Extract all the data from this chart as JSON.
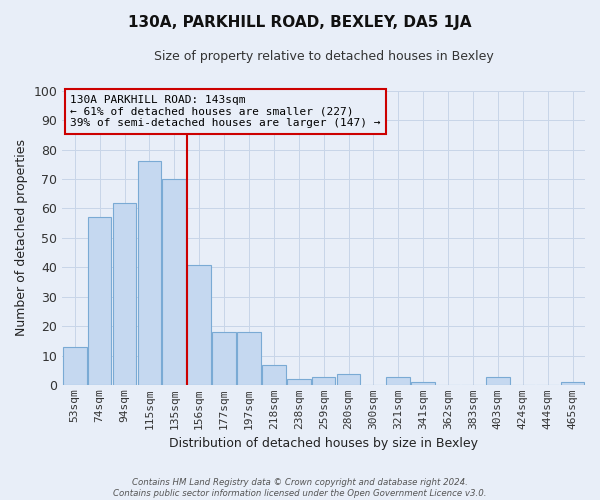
{
  "title": "130A, PARKHILL ROAD, BEXLEY, DA5 1JA",
  "subtitle": "Size of property relative to detached houses in Bexley",
  "xlabel": "Distribution of detached houses by size in Bexley",
  "ylabel": "Number of detached properties",
  "bar_labels": [
    "53sqm",
    "74sqm",
    "94sqm",
    "115sqm",
    "135sqm",
    "156sqm",
    "177sqm",
    "197sqm",
    "218sqm",
    "238sqm",
    "259sqm",
    "280sqm",
    "300sqm",
    "321sqm",
    "341sqm",
    "362sqm",
    "383sqm",
    "403sqm",
    "424sqm",
    "444sqm",
    "465sqm"
  ],
  "bar_values": [
    13,
    57,
    62,
    76,
    70,
    41,
    18,
    18,
    7,
    2,
    3,
    4,
    0,
    3,
    1,
    0,
    0,
    3,
    0,
    0,
    1
  ],
  "bar_color": "#c5d8f0",
  "bar_edgecolor": "#7aaad4",
  "vline_x": 4.5,
  "vline_color": "#cc0000",
  "annotation_title": "130A PARKHILL ROAD: 143sqm",
  "annotation_line1": "← 61% of detached houses are smaller (227)",
  "annotation_line2": "39% of semi-detached houses are larger (147) →",
  "annotation_box_edgecolor": "#cc0000",
  "ylim": [
    0,
    100
  ],
  "yticks": [
    0,
    10,
    20,
    30,
    40,
    50,
    60,
    70,
    80,
    90,
    100
  ],
  "grid_color": "#c8d5e8",
  "bg_color": "#e8eef8",
  "footer_line1": "Contains HM Land Registry data © Crown copyright and database right 2024.",
  "footer_line2": "Contains public sector information licensed under the Open Government Licence v3.0."
}
